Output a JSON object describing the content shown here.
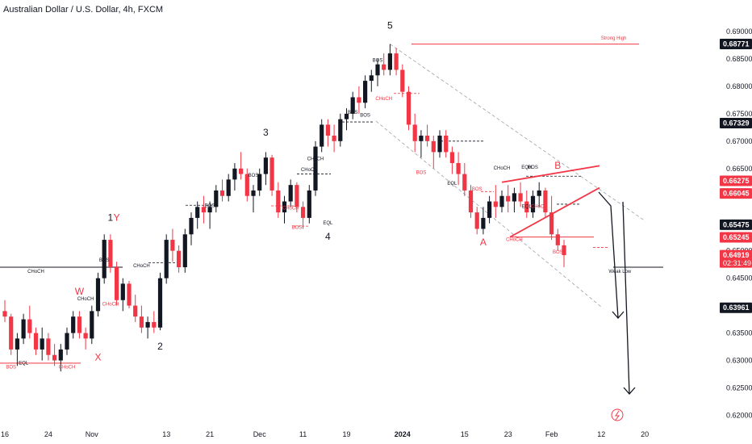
{
  "title": "Australian Dollar / U.S. Dollar, 4h, FXCM",
  "chart_data": {
    "type": "candlestick",
    "y_axis": {
      "min": 0.618,
      "max": 0.6925,
      "ticks": [
        "0.69000",
        "0.68500",
        "0.68000",
        "0.67500",
        "0.67000",
        "0.66500",
        "0.66000",
        "0.65500",
        "0.65000",
        "0.64500",
        "0.64000",
        "0.63500",
        "0.63000",
        "0.62500",
        "0.62000"
      ],
      "tick_values": [
        0.69,
        0.685,
        0.68,
        0.675,
        0.67,
        0.665,
        0.66,
        0.655,
        0.65,
        0.645,
        0.64,
        0.635,
        0.63,
        0.625,
        0.62
      ]
    },
    "x_axis": {
      "labels": [
        {
          "text": "16",
          "i": 0
        },
        {
          "text": "24",
          "i": 7
        },
        {
          "text": "Nov",
          "i": 14
        },
        {
          "text": "13",
          "i": 26
        },
        {
          "text": "21",
          "i": 33
        },
        {
          "text": "Dec",
          "i": 41
        },
        {
          "text": "11",
          "i": 48
        },
        {
          "text": "19",
          "i": 55
        },
        {
          "text": "2024",
          "i": 64,
          "bold": true
        },
        {
          "text": "15",
          "i": 74
        },
        {
          "text": "23",
          "i": 81
        },
        {
          "text": "Feb",
          "i": 88
        },
        {
          "text": "12",
          "i": 96
        },
        {
          "text": "20",
          "i": 103
        }
      ]
    },
    "price_labels": [
      {
        "text": "0.68771",
        "value": 0.68771,
        "color": "#131722"
      },
      {
        "text": "0.67329",
        "value": 0.67329,
        "color": "#131722"
      },
      {
        "text": "0.66275",
        "value": 0.66275,
        "color": "#f23645"
      },
      {
        "text": "0.66045",
        "value": 0.66045,
        "color": "#f23645"
      },
      {
        "text": "0.65475",
        "value": 0.65475,
        "color": "#131722"
      },
      {
        "text": "0.65245",
        "value": 0.65245,
        "color": "#f23645"
      },
      {
        "text": "0.64919",
        "value": 0.64919,
        "color": "#f23645",
        "sub": "02:31:49"
      },
      {
        "text": "0.63961",
        "value": 0.63961,
        "color": "#131722"
      }
    ],
    "candles": [
      [
        0.639,
        0.641,
        0.637,
        0.638
      ],
      [
        0.638,
        0.6385,
        0.631,
        0.632
      ],
      [
        0.632,
        0.635,
        0.629,
        0.634
      ],
      [
        0.634,
        0.6385,
        0.633,
        0.6375
      ],
      [
        0.6375,
        0.64,
        0.634,
        0.635
      ],
      [
        0.635,
        0.636,
        0.631,
        0.632
      ],
      [
        0.632,
        0.636,
        0.63,
        0.634
      ],
      [
        0.634,
        0.635,
        0.63,
        0.631
      ],
      [
        0.631,
        0.633,
        0.629,
        0.63
      ],
      [
        0.63,
        0.633,
        0.628,
        0.632
      ],
      [
        0.632,
        0.636,
        0.631,
        0.635
      ],
      [
        0.635,
        0.639,
        0.634,
        0.638
      ],
      [
        0.638,
        0.639,
        0.634,
        0.635
      ],
      [
        0.635,
        0.636,
        0.632,
        0.634
      ],
      [
        0.634,
        0.64,
        0.633,
        0.639
      ],
      [
        0.639,
        0.646,
        0.638,
        0.645
      ],
      [
        0.645,
        0.653,
        0.644,
        0.652
      ],
      [
        0.652,
        0.653,
        0.646,
        0.647
      ],
      [
        0.647,
        0.648,
        0.64,
        0.641
      ],
      [
        0.641,
        0.645,
        0.639,
        0.644
      ],
      [
        0.644,
        0.6445,
        0.6395,
        0.64
      ],
      [
        0.64,
        0.642,
        0.637,
        0.638
      ],
      [
        0.638,
        0.64,
        0.635,
        0.636
      ],
      [
        0.636,
        0.638,
        0.634,
        0.637
      ],
      [
        0.637,
        0.639,
        0.635,
        0.636
      ],
      [
        0.636,
        0.646,
        0.6355,
        0.645
      ],
      [
        0.645,
        0.653,
        0.644,
        0.652
      ],
      [
        0.652,
        0.654,
        0.648,
        0.65
      ],
      [
        0.65,
        0.651,
        0.646,
        0.647
      ],
      [
        0.647,
        0.654,
        0.646,
        0.653
      ],
      [
        0.653,
        0.657,
        0.651,
        0.656
      ],
      [
        0.656,
        0.659,
        0.654,
        0.658
      ],
      [
        0.658,
        0.66,
        0.655,
        0.657
      ],
      [
        0.657,
        0.659,
        0.654,
        0.658
      ],
      [
        0.658,
        0.662,
        0.657,
        0.661
      ],
      [
        0.661,
        0.663,
        0.659,
        0.66
      ],
      [
        0.66,
        0.664,
        0.659,
        0.663
      ],
      [
        0.663,
        0.666,
        0.661,
        0.665
      ],
      [
        0.665,
        0.668,
        0.663,
        0.664
      ],
      [
        0.664,
        0.665,
        0.659,
        0.66
      ],
      [
        0.66,
        0.662,
        0.657,
        0.661
      ],
      [
        0.661,
        0.665,
        0.66,
        0.664
      ],
      [
        0.664,
        0.668,
        0.662,
        0.667
      ],
      [
        0.667,
        0.6675,
        0.66,
        0.661
      ],
      [
        0.661,
        0.6625,
        0.656,
        0.657
      ],
      [
        0.657,
        0.66,
        0.655,
        0.659
      ],
      [
        0.659,
        0.663,
        0.658,
        0.662
      ],
      [
        0.662,
        0.6625,
        0.657,
        0.658
      ],
      [
        0.658,
        0.659,
        0.654,
        0.656
      ],
      [
        0.656,
        0.662,
        0.655,
        0.661
      ],
      [
        0.661,
        0.67,
        0.66,
        0.669
      ],
      [
        0.669,
        0.674,
        0.668,
        0.673
      ],
      [
        0.673,
        0.674,
        0.669,
        0.671
      ],
      [
        0.671,
        0.673,
        0.668,
        0.67
      ],
      [
        0.67,
        0.675,
        0.669,
        0.674
      ],
      [
        0.674,
        0.676,
        0.672,
        0.675
      ],
      [
        0.675,
        0.679,
        0.674,
        0.678
      ],
      [
        0.678,
        0.68,
        0.675,
        0.677
      ],
      [
        0.677,
        0.682,
        0.676,
        0.681
      ],
      [
        0.681,
        0.683,
        0.679,
        0.682
      ],
      [
        0.682,
        0.685,
        0.68,
        0.684
      ],
      [
        0.684,
        0.686,
        0.682,
        0.683
      ],
      [
        0.683,
        0.6877,
        0.682,
        0.686
      ],
      [
        0.686,
        0.687,
        0.682,
        0.683
      ],
      [
        0.683,
        0.684,
        0.678,
        0.679
      ],
      [
        0.679,
        0.68,
        0.672,
        0.673
      ],
      [
        0.673,
        0.675,
        0.668,
        0.67
      ],
      [
        0.67,
        0.672,
        0.667,
        0.671
      ],
      [
        0.671,
        0.673,
        0.669,
        0.67
      ],
      [
        0.67,
        0.671,
        0.665,
        0.668
      ],
      [
        0.668,
        0.672,
        0.667,
        0.671
      ],
      [
        0.671,
        0.672,
        0.667,
        0.668
      ],
      [
        0.668,
        0.669,
        0.664,
        0.666
      ],
      [
        0.666,
        0.668,
        0.662,
        0.664
      ],
      [
        0.664,
        0.666,
        0.66,
        0.661
      ],
      [
        0.661,
        0.662,
        0.656,
        0.657
      ],
      [
        0.657,
        0.658,
        0.653,
        0.654
      ],
      [
        0.654,
        0.658,
        0.653,
        0.656
      ],
      [
        0.656,
        0.66,
        0.655,
        0.659
      ],
      [
        0.659,
        0.662,
        0.656,
        0.658
      ],
      [
        0.658,
        0.661,
        0.657,
        0.66
      ],
      [
        0.66,
        0.662,
        0.657,
        0.659
      ],
      [
        0.659,
        0.6615,
        0.657,
        0.6605
      ],
      [
        0.6605,
        0.6625,
        0.658,
        0.659
      ],
      [
        0.659,
        0.661,
        0.656,
        0.657
      ],
      [
        0.657,
        0.661,
        0.656,
        0.66
      ],
      [
        0.66,
        0.6625,
        0.658,
        0.661
      ],
      [
        0.661,
        0.6615,
        0.656,
        0.657
      ],
      [
        0.657,
        0.66,
        0.652,
        0.653
      ],
      [
        0.653,
        0.654,
        0.65,
        0.651
      ],
      [
        0.651,
        0.652,
        0.647,
        0.6492
      ]
    ],
    "swing_labels": [
      {
        "text": "1",
        "i": 17,
        "v": 0.6555,
        "color": "#131722"
      },
      {
        "text": "Y",
        "i": 18,
        "v": 0.6555,
        "color": "#f23645"
      },
      {
        "text": "W",
        "i": 12,
        "v": 0.642,
        "color": "#f23645"
      },
      {
        "text": "X",
        "i": 15,
        "v": 0.63,
        "color": "#f23645"
      },
      {
        "text": "2",
        "i": 25,
        "v": 0.632,
        "color": "#131722"
      },
      {
        "text": "3",
        "i": 42,
        "v": 0.671,
        "color": "#131722"
      },
      {
        "text": "4",
        "i": 52,
        "v": 0.652,
        "color": "#131722"
      },
      {
        "text": "5",
        "i": 62,
        "v": 0.6905,
        "color": "#131722"
      },
      {
        "text": "A",
        "i": 77,
        "v": 0.651,
        "color": "#f23645"
      },
      {
        "text": "B",
        "i": 89,
        "v": 0.665,
        "color": "#f23645"
      }
    ],
    "small_labels": [
      {
        "text": "CHoCH",
        "i": 5,
        "v": 0.646,
        "color": "#131722"
      },
      {
        "text": "BOS",
        "i": 1,
        "v": 0.6285,
        "color": "#f23645"
      },
      {
        "text": "EQL",
        "i": 3,
        "v": 0.6293,
        "color": "#131722"
      },
      {
        "text": "CHoCH",
        "i": 10,
        "v": 0.6285,
        "color": "#f23645"
      },
      {
        "text": "CHoCH",
        "i": 13,
        "v": 0.641,
        "color": "#131722"
      },
      {
        "text": "BOS",
        "i": 16,
        "v": 0.648,
        "color": "#131722"
      },
      {
        "text": "CHoCH",
        "i": 17,
        "v": 0.64,
        "color": "#f23645"
      },
      {
        "text": "CHoCH",
        "i": 22,
        "v": 0.647,
        "color": "#131722"
      },
      {
        "text": "BOS",
        "i": 33,
        "v": 0.658,
        "color": "#131722"
      },
      {
        "text": "BOS",
        "i": 40,
        "v": 0.6635,
        "color": "#131722"
      },
      {
        "text": "CHoCH",
        "i": 49,
        "v": 0.6645,
        "color": "#131722"
      },
      {
        "text": "CHoCH",
        "i": 46,
        "v": 0.6575,
        "color": "#f23645"
      },
      {
        "text": "BOS",
        "i": 47,
        "v": 0.654,
        "color": "#f23645"
      },
      {
        "text": "EQL",
        "i": 52,
        "v": 0.6548,
        "color": "#131722"
      },
      {
        "text": "CHoCH",
        "i": 50,
        "v": 0.6665,
        "color": "#131722"
      },
      {
        "text": "BOS",
        "i": 56,
        "v": 0.675,
        "color": "#131722"
      },
      {
        "text": "BOS",
        "i": 58,
        "v": 0.6745,
        "color": "#131722"
      },
      {
        "text": "BOS",
        "i": 60,
        "v": 0.6845,
        "color": "#131722"
      },
      {
        "text": "CHoCH",
        "i": 61,
        "v": 0.6775,
        "color": "#f23645"
      },
      {
        "text": "BOS",
        "i": 67,
        "v": 0.664,
        "color": "#f23645"
      },
      {
        "text": "EQL",
        "i": 72,
        "v": 0.662,
        "color": "#131722"
      },
      {
        "text": "BOS",
        "i": 76,
        "v": 0.661,
        "color": "#f23645"
      },
      {
        "text": "CHoCH",
        "i": 80,
        "v": 0.6648,
        "color": "#131722"
      },
      {
        "text": "EQH",
        "i": 84,
        "v": 0.665,
        "color": "#131722"
      },
      {
        "text": "BOS",
        "i": 85,
        "v": 0.665,
        "color": "#131722"
      },
      {
        "text": "EQL",
        "i": 84,
        "v": 0.6578,
        "color": "#131722"
      },
      {
        "text": "CHoCH",
        "i": 86,
        "v": 0.6578,
        "color": "#f23645"
      },
      {
        "text": "CHoCH",
        "i": 82,
        "v": 0.6518,
        "color": "#f23645"
      },
      {
        "text": "BOS",
        "i": 89,
        "v": 0.6495,
        "color": "#f23645"
      },
      {
        "text": "Strong High",
        "i": 98,
        "v": 0.6885,
        "color": "#f23645"
      },
      {
        "text": "Weak Low",
        "i": 99,
        "v": 0.646,
        "color": "#131722"
      }
    ]
  }
}
